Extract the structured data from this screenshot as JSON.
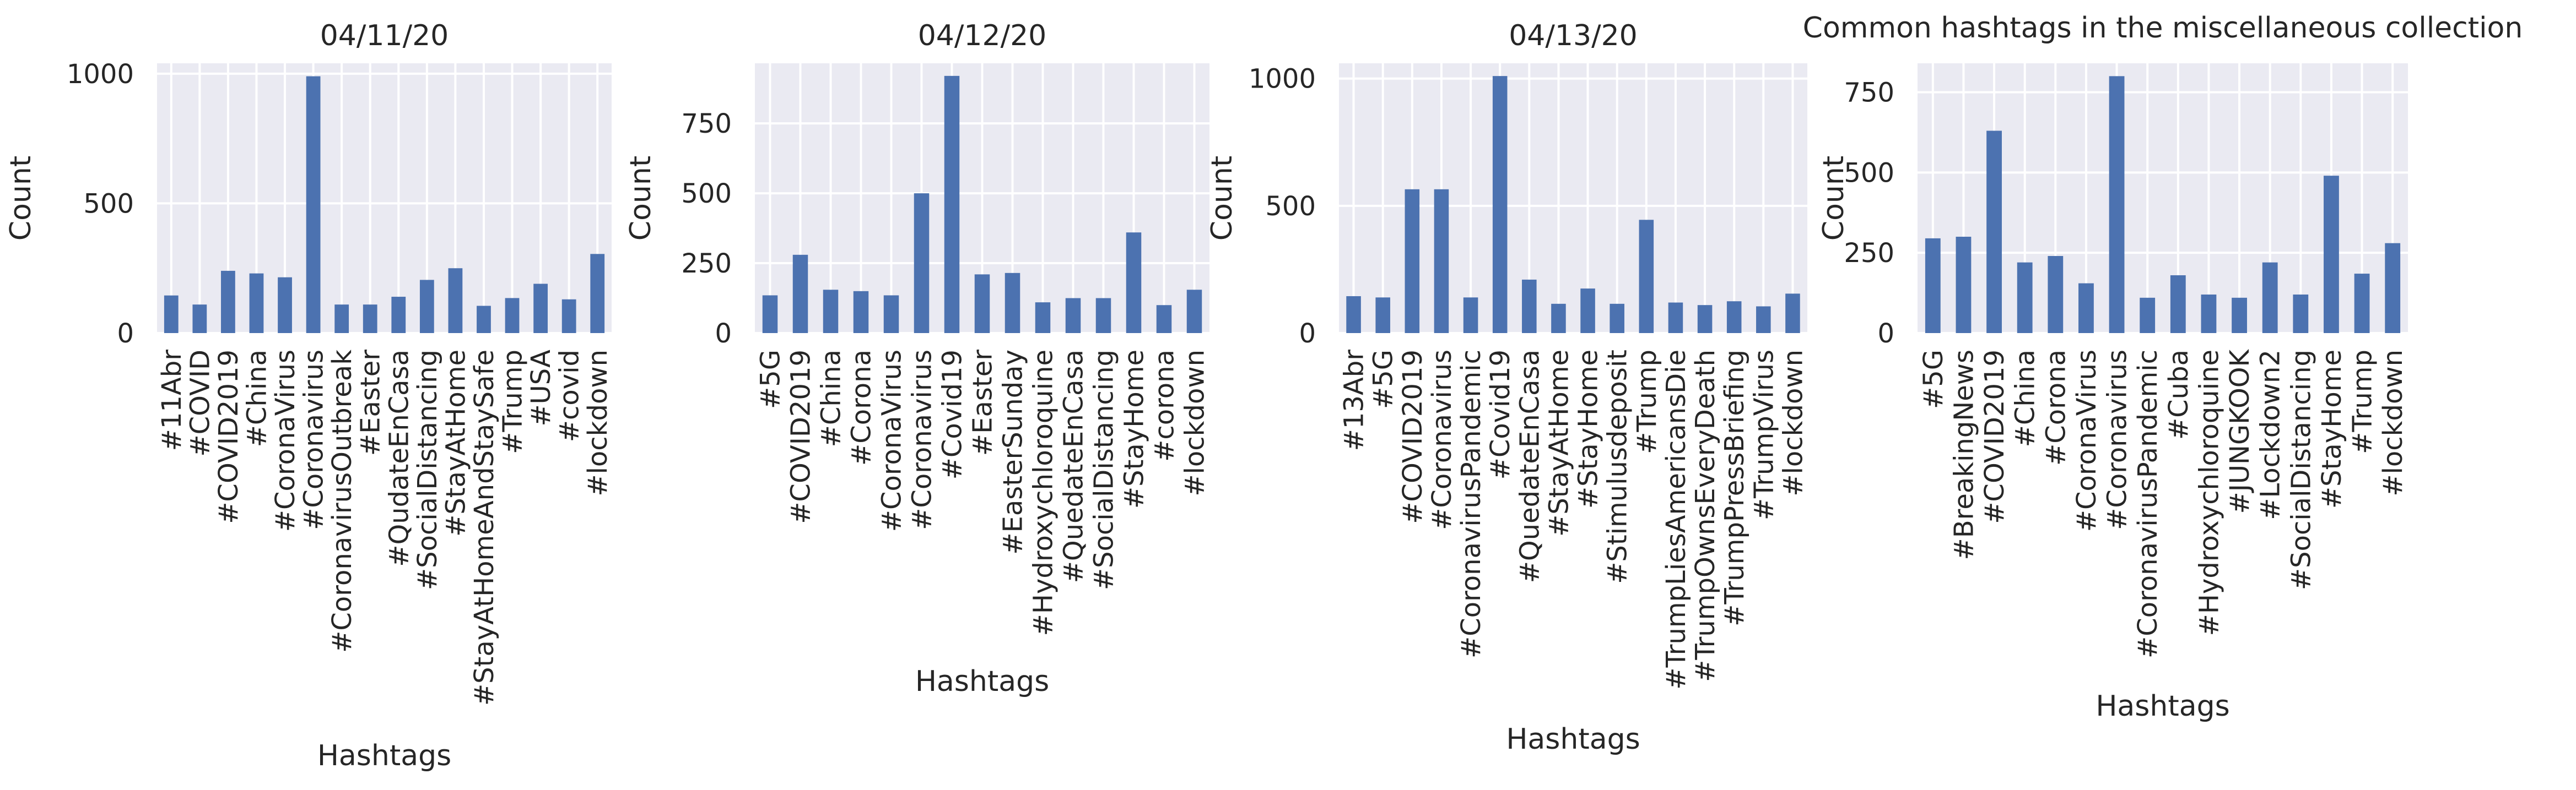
{
  "figure": {
    "background": "#ffffff",
    "plot_background": "#eaeaf2",
    "grid_color": "#ffffff",
    "bar_color": "#4c72b0",
    "text_color": "#262626"
  },
  "chart_data": [
    {
      "type": "bar",
      "title": "04/11/20",
      "xlabel": "Hashtags",
      "ylabel": "Count",
      "grid": true,
      "ylim": [
        0,
        1040
      ],
      "yticks": [
        0,
        500,
        1000
      ],
      "categories": [
        "#11Abr",
        "#COVID",
        "#COVID2019",
        "#China",
        "#CoronaVirus",
        "#Coronavirus",
        "#CoronavirusOutbreak",
        "#Easter",
        "#QudateEnCasa",
        "#SocialDistancing",
        "#StayAtHome",
        "#StayAtHomeAndStaySafe",
        "#Trump",
        "#USA",
        "#covid",
        "#lockdown"
      ],
      "values": [
        145,
        110,
        240,
        230,
        215,
        990,
        110,
        110,
        140,
        205,
        250,
        105,
        135,
        190,
        130,
        305
      ]
    },
    {
      "type": "bar",
      "title": "04/12/20",
      "xlabel": "Hashtags",
      "ylabel": "Count",
      "grid": true,
      "ylim": [
        0,
        965
      ],
      "yticks": [
        0,
        250,
        500,
        750
      ],
      "categories": [
        "#5G",
        "#COVID2019",
        "#China",
        "#Corona",
        "#CoronaVirus",
        "#Coronavirus",
        "#Covid19",
        "#Easter",
        "#EasterSunday",
        "#Hydroxychloroquine",
        "#QuedateEnCasa",
        "#SocialDistancing",
        "#StayHome",
        "#corona",
        "#lockdown"
      ],
      "values": [
        135,
        280,
        155,
        150,
        135,
        500,
        920,
        210,
        215,
        110,
        125,
        125,
        360,
        100,
        155
      ]
    },
    {
      "type": "bar",
      "title": "04/13/20",
      "xlabel": "Hashtags",
      "ylabel": "Count",
      "grid": true,
      "ylim": [
        0,
        1060
      ],
      "yticks": [
        0,
        500,
        1000
      ],
      "categories": [
        "#13Abr",
        "#5G",
        "#COVID2019",
        "#Coronavirus",
        "#CoronavirusPandemic",
        "#Covid19",
        "#QuedateEnCasa",
        "#StayAtHome",
        "#StayHome",
        "#Stimulusdeposit",
        "#Trump",
        "#TrumpLiesAmericansDie",
        "#TrumpOwnsEveryDeath",
        "#TrumpPressBriefing",
        "#TrumpVirus",
        "#lockdown"
      ],
      "values": [
        145,
        140,
        565,
        565,
        140,
        1010,
        210,
        115,
        175,
        115,
        445,
        120,
        110,
        125,
        105,
        155
      ]
    },
    {
      "type": "bar",
      "title": "Common hashtags in the miscellaneous collection",
      "xlabel": "Hashtags",
      "ylabel": "Count",
      "grid": true,
      "ylim": [
        0,
        840
      ],
      "yticks": [
        0,
        250,
        500,
        750
      ],
      "categories": [
        "#5G",
        "#BreakingNews",
        "#COVID2019",
        "#China",
        "#Corona",
        "#CoronaVirus",
        "#Coronavirus",
        "#CoronavirusPandemic",
        "#Cuba",
        "#Hydroxychloroquine",
        "#JUNGKOOK",
        "#Lockdown2",
        "#SocialDistancing",
        "#StayHome",
        "#Trump",
        "#lockdown"
      ],
      "values": [
        295,
        300,
        630,
        220,
        240,
        155,
        800,
        110,
        180,
        120,
        110,
        220,
        120,
        490,
        185,
        280
      ]
    }
  ]
}
